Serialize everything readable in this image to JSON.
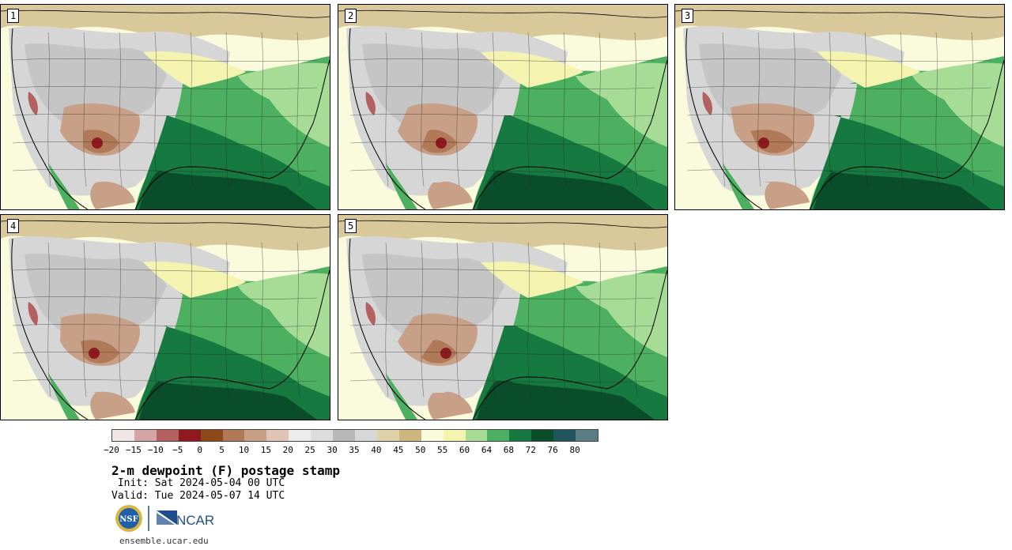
{
  "panels": [
    {
      "label": "1"
    },
    {
      "label": "2"
    },
    {
      "label": "3"
    },
    {
      "label": "4"
    },
    {
      "label": "5"
    }
  ],
  "colorbar": {
    "colors": [
      "#f1e6e6",
      "#d6a4a4",
      "#b36060",
      "#8e1a1f",
      "#8c4a1a",
      "#b07a58",
      "#c8a088",
      "#e0c4b4",
      "#ececec",
      "#dcdcdc",
      "#b8b8b8",
      "#d8d8d8",
      "#e0d2a8",
      "#cfb67e",
      "#fafadc",
      "#f4f4b0",
      "#a6dc96",
      "#4cb060",
      "#167a40",
      "#0a4d2a",
      "#20555e",
      "#5a7e84"
    ],
    "tick_labels": [
      "−20",
      "−15",
      "−10",
      "−5",
      "0",
      "5",
      "10",
      "15",
      "20",
      "25",
      "30",
      "35",
      "40",
      "45",
      "50",
      "55",
      "60",
      "64",
      "68",
      "72",
      "76",
      "80"
    ]
  },
  "title": "2-m dewpoint (F) postage stamp",
  "init_line": " Init: Sat 2024-05-04 00 UTC",
  "valid_line": "Valid: Tue 2024-05-07 14 UTC",
  "logos": {
    "nsf": "NSF",
    "ncar": "NCAR"
  },
  "url": "ensemble.ucar.edu"
}
